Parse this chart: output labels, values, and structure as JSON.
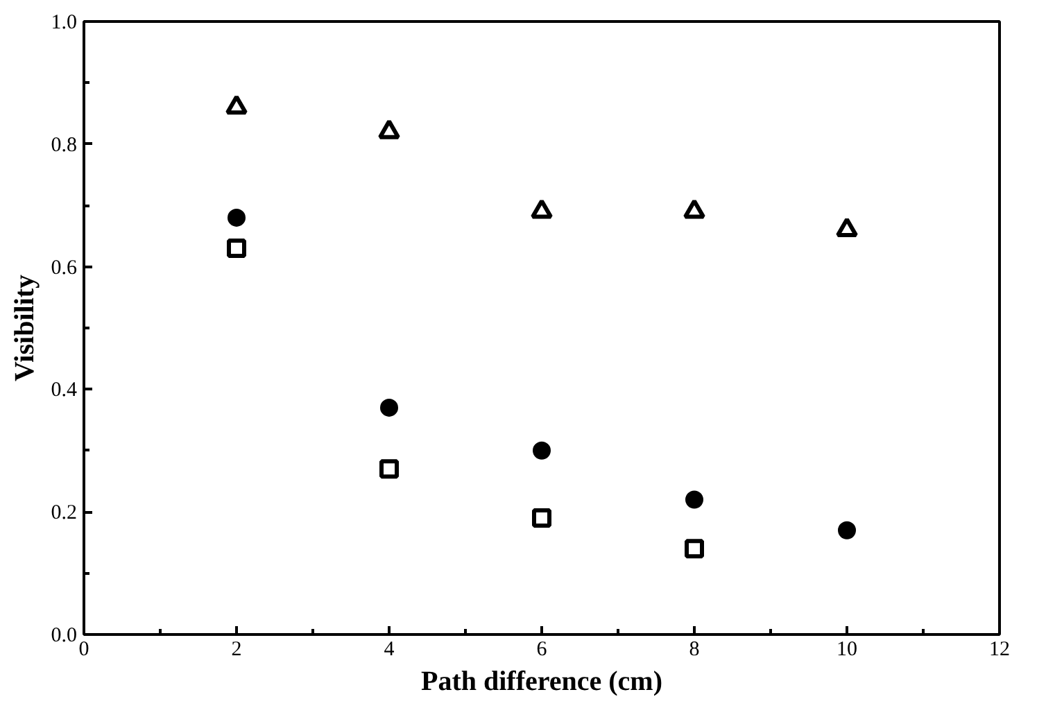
{
  "chart_data": {
    "type": "scatter",
    "xlabel": "Path difference (cm)",
    "ylabel": "Visibility",
    "xlim": [
      0,
      12
    ],
    "ylim": [
      0,
      1
    ],
    "xticks": [
      0,
      2,
      4,
      6,
      8,
      10,
      12
    ],
    "yticks": [
      {
        "value": 0,
        "label": "0.0"
      },
      0.2,
      0.4,
      0.6,
      0.8,
      {
        "value": 1,
        "label": "1.0"
      }
    ],
    "grid": false,
    "series": [
      {
        "color": "#000000",
        "marker": "triangle",
        "x": [
          2,
          4,
          6,
          8,
          10
        ],
        "values": [
          0.86,
          0.82,
          0.69,
          0.69,
          0.66
        ]
      },
      {
        "color": "#000000",
        "marker": "circle",
        "x": [
          2,
          4,
          6,
          8,
          10
        ],
        "values": [
          0.68,
          0.37,
          0.3,
          0.22,
          0.17
        ]
      },
      {
        "color": "#000000",
        "marker": "square",
        "x": [
          2,
          4,
          6,
          8
        ],
        "values": [
          0.63,
          0.27,
          0.19,
          0.14
        ]
      }
    ]
  }
}
